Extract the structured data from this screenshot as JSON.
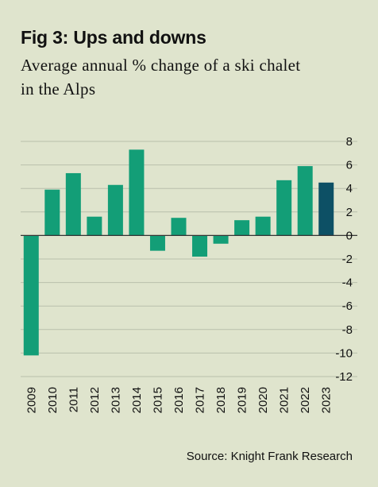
{
  "header": {
    "title": "Fig 3: Ups and downs",
    "subtitle": "Average annual % change of a ski chalet in the Alps"
  },
  "footer": {
    "source": "Source: Knight Frank Research"
  },
  "colors": {
    "background": "#dfe4cd",
    "bar": "#139e77",
    "bar_highlight": "#0d5065",
    "grid": "#b9bfab"
  },
  "chart_data": {
    "type": "bar",
    "title": "Fig 3: Ups and downs",
    "subtitle": "Average annual % change of a ski chalet in the Alps",
    "categories": [
      "2009",
      "2010",
      "2011",
      "2012",
      "2013",
      "2014",
      "2015",
      "2016",
      "2017",
      "2018",
      "2019",
      "2020",
      "2021",
      "2022",
      "2023"
    ],
    "values": [
      -10.2,
      3.9,
      5.3,
      1.6,
      4.3,
      7.3,
      -1.3,
      1.5,
      -1.8,
      -0.7,
      1.3,
      1.6,
      4.7,
      5.9,
      4.5
    ],
    "highlight": "2023",
    "ylim": [
      -12,
      8
    ],
    "yticks": [
      8,
      6,
      4,
      2,
      0,
      -2,
      -4,
      -6,
      -8,
      -10,
      -12
    ],
    "xlabel": "",
    "ylabel": "",
    "grid": true,
    "y_axis_position": "right",
    "legend": "none"
  }
}
